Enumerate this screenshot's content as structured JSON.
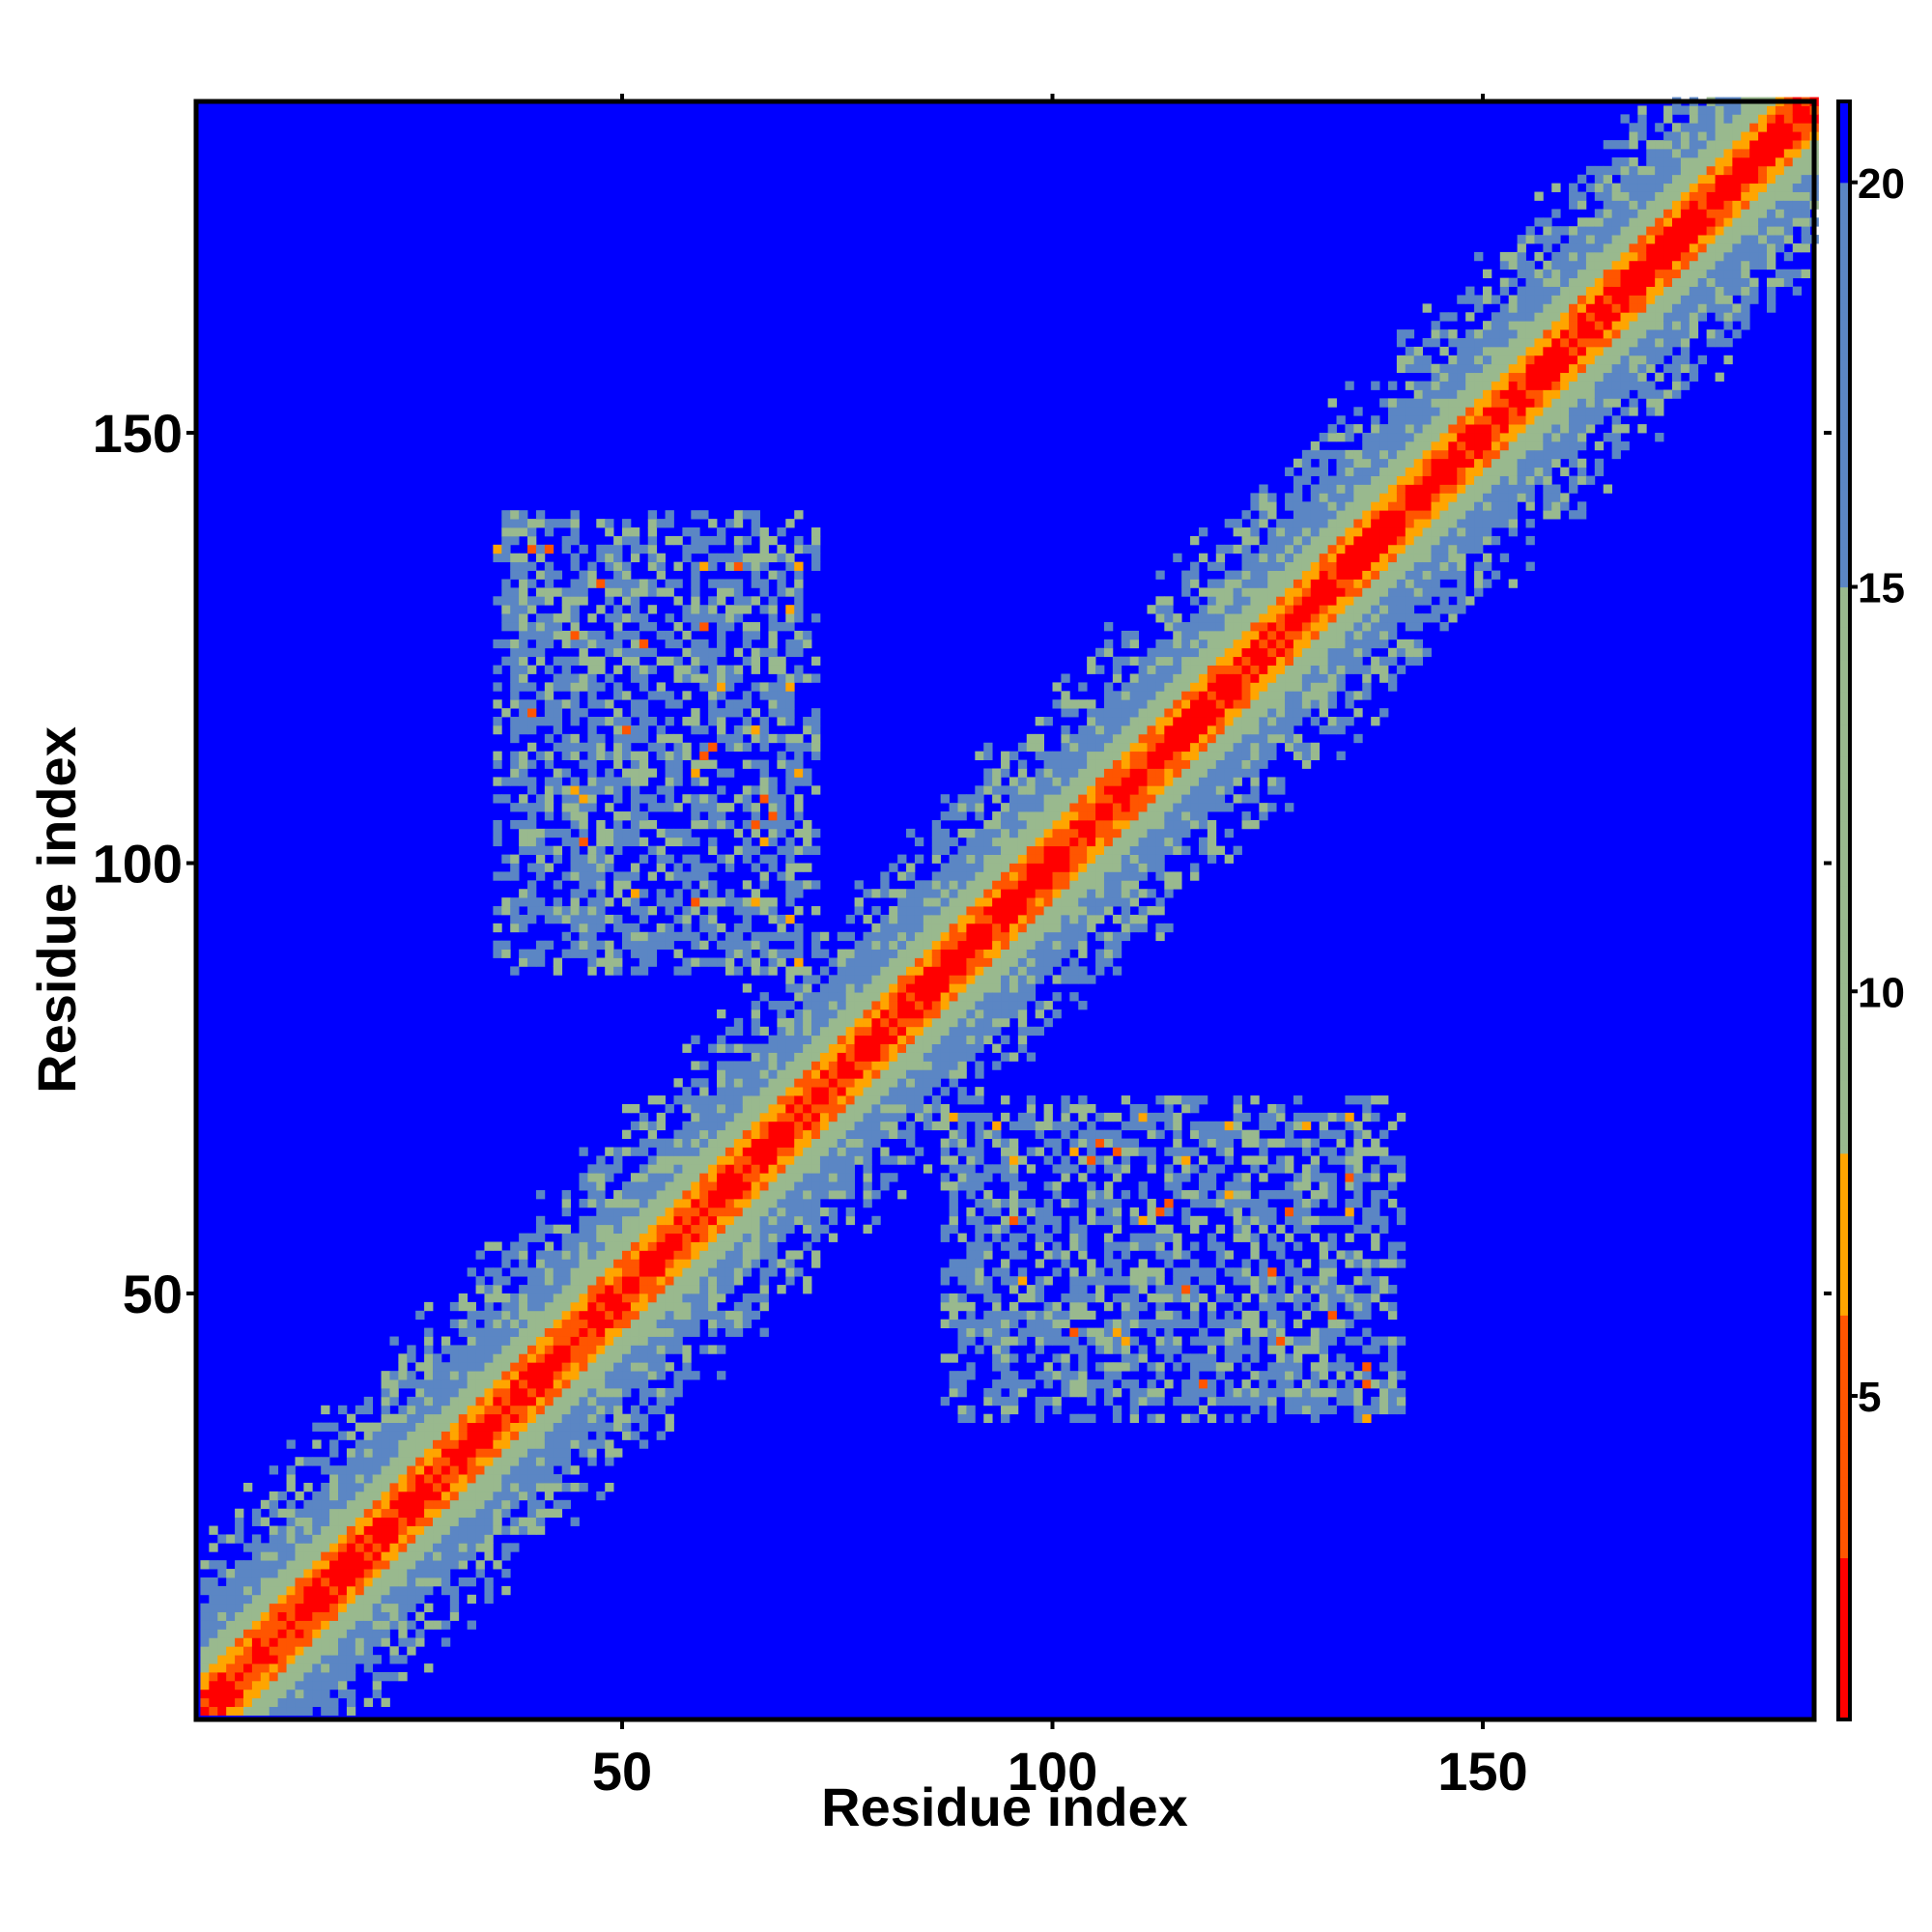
{
  "chart_data": {
    "type": "heatmap",
    "title": "",
    "xlabel": "Residue index",
    "ylabel": "Residue index",
    "n_residues": 188,
    "xlim": [
      1,
      188
    ],
    "ylim": [
      1,
      188
    ],
    "x_ticks": [
      50,
      100,
      150
    ],
    "y_ticks": [
      50,
      100,
      150
    ],
    "x_tick_labels": [
      "50",
      "100",
      "150"
    ],
    "y_tick_labels": [
      "50",
      "100",
      "150"
    ],
    "grid": false,
    "legend": "colorbar-right",
    "colorbar": {
      "range": [
        1,
        21
      ],
      "ticks": [
        5,
        10,
        15,
        20
      ],
      "tick_labels": [
        "5",
        "10",
        "15",
        "20"
      ],
      "colors": {
        "very_close": "#ff0000",
        "close": "#ff5500",
        "near": "#ffa500",
        "mid": "#99b98e",
        "far": "#5b86c4",
        "background": "#0000ff"
      },
      "thresholds": [
        3,
        6,
        8,
        15,
        20
      ]
    },
    "values_description_free": true,
    "contact_regions": [
      {
        "x": [
          37,
          72
        ],
        "y": [
          87,
          139
        ],
        "density": 0.35
      },
      {
        "x": [
          88,
          140
        ],
        "y": [
          35,
          70
        ],
        "density": 0.35
      }
    ]
  }
}
